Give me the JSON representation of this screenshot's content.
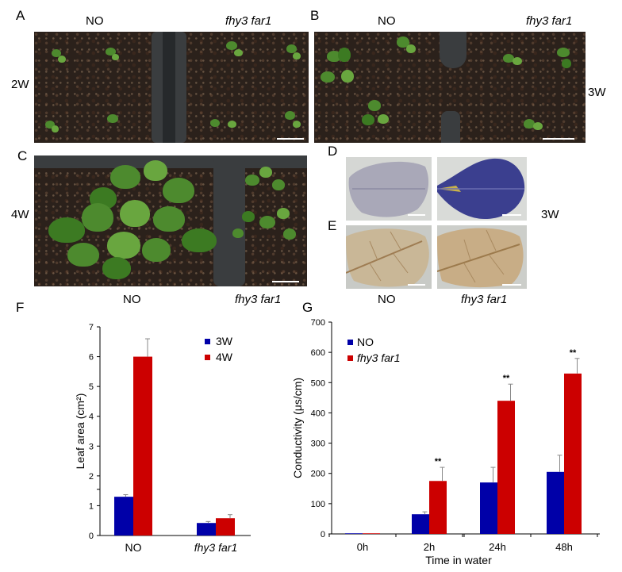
{
  "panels": {
    "a": {
      "label": "A",
      "left": "NO",
      "right": "fhy3 far1",
      "age": "2W"
    },
    "b": {
      "label": "B",
      "left": "NO",
      "right": "fhy3 far1",
      "age": "3W"
    },
    "c": {
      "label": "C",
      "age": "4W"
    },
    "d": {
      "label": "D"
    },
    "e": {
      "label": "E",
      "age": "3W"
    },
    "c_bottom": {
      "left": "NO",
      "right": "fhy3 far1"
    },
    "de_bottom": {
      "left": "NO",
      "right": "fhy3 far1"
    }
  },
  "colors": {
    "NO": "#0000a8",
    "fhy3far1": "#cc0000"
  },
  "chart_data": [
    {
      "panel": "F",
      "type": "bar",
      "categories": [
        "NO",
        "fhy3 far1"
      ],
      "series": [
        {
          "name": "3W",
          "values": [
            1.3,
            0.42
          ],
          "errors": [
            0.07,
            0.05
          ]
        },
        {
          "name": "4W",
          "values": [
            6.0,
            0.58
          ],
          "errors": [
            0.6,
            0.12
          ]
        }
      ],
      "ylabel": "Leaf area (cm²)",
      "yticks": [
        "0",
        "1",
        "",
        "2",
        "3",
        "4",
        "5",
        "6",
        "7"
      ],
      "ylim": [
        0,
        7
      ],
      "legend": "top-right"
    },
    {
      "panel": "G",
      "type": "bar",
      "categories": [
        "0h",
        "2h",
        "24h",
        "48h"
      ],
      "series": [
        {
          "name": "NO",
          "values": [
            2,
            65,
            170,
            205
          ],
          "errors": [
            0,
            8,
            50,
            55
          ]
        },
        {
          "name": "fhy3 far1",
          "values": [
            2,
            175,
            440,
            530
          ],
          "errors": [
            0,
            45,
            55,
            50
          ]
        }
      ],
      "significance": [
        "",
        "**",
        "**",
        "**"
      ],
      "xlabel": "Time in water",
      "ylabel": "Conductivity (μs/cm)",
      "yticks": [
        0,
        100,
        200,
        300,
        400,
        500,
        600,
        700
      ],
      "ylim": [
        0,
        700
      ],
      "legend": "top-left"
    }
  ]
}
